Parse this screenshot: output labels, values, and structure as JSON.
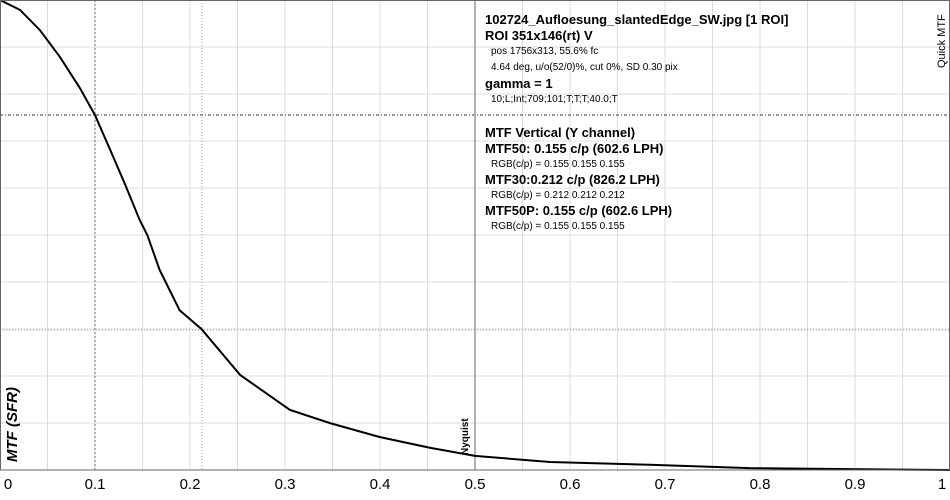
{
  "header": {
    "file": "102724_Aufloesung_slantedEdge_SW.jpg [1 ROI]",
    "roi": "ROI 351x146(rt) V",
    "pos": "pos 1756x313, 55.6% fc",
    "params": "4.64 deg, u/o(52/0)%, cut 0%, SD 0.30 pix",
    "gamma": "gamma = 1",
    "settings": "10;L;Int;709;101;T;T;T;40.0;T"
  },
  "results": {
    "title": "MTF Vertical (Y channel)",
    "mtf50": "MTF50: 0.155 c/p (602.6 LPH)",
    "mtf50_rgb": "RGB(c/p) = 0.155 0.155 0.155",
    "mtf30": "MTF30:0.212 c/p (826.2 LPH)",
    "mtf30_rgb": "RGB(c/p) = 0.212 0.212 0.212",
    "mtf50p": "MTF50P: 0.155 c/p (602.6 LPH)",
    "mtf50p_rgb": "RGB(c/p) = 0.155 0.155 0.155"
  },
  "side_label": "Quick MTF",
  "ylabel": "MTF (SFR)",
  "nyquist_label": "Nyquist",
  "xticks": [
    "0",
    "0.1",
    "0.2",
    "0.3",
    "0.4",
    "0.5",
    "0.6",
    "0.7",
    "0.8",
    "0.9",
    "1"
  ],
  "chart_data": {
    "type": "line",
    "title": "MTF Vertical (Y channel)",
    "xlabel": "",
    "ylabel": "MTF (SFR)",
    "xlim": [
      0,
      1
    ],
    "ylim": [
      0,
      1
    ],
    "grid": true,
    "series": [
      {
        "name": "MTF (Y channel)",
        "x": [
          0,
          0.021,
          0.042,
          0.063,
          0.084,
          0.1,
          0.116,
          0.132,
          0.147,
          0.155,
          0.168,
          0.189,
          0.212,
          0.253,
          0.305,
          0.347,
          0.4,
          0.453,
          0.5,
          0.579,
          0.684,
          0.789,
          0.895,
          1.0
        ],
        "values": [
          1.0,
          0.979,
          0.936,
          0.879,
          0.813,
          0.755,
          0.681,
          0.606,
          0.532,
          0.5,
          0.426,
          0.34,
          0.3,
          0.202,
          0.128,
          0.1,
          0.07,
          0.047,
          0.03,
          0.017,
          0.011,
          0.004,
          0.002,
          0.0
        ]
      }
    ],
    "annotations": [
      {
        "type": "vline",
        "x": 0.1,
        "style": "dashed"
      },
      {
        "type": "hline",
        "y": 0.755,
        "style": "dashdot"
      },
      {
        "type": "vline",
        "x": 0.212,
        "style": "dotted"
      },
      {
        "type": "hline",
        "y": 0.3,
        "style": "dotted"
      },
      {
        "type": "vline",
        "x": 0.5,
        "label": "Nyquist"
      }
    ],
    "xticks": [
      0,
      0.1,
      0.2,
      0.3,
      0.4,
      0.5,
      0.6,
      0.7,
      0.8,
      0.9,
      1
    ]
  }
}
